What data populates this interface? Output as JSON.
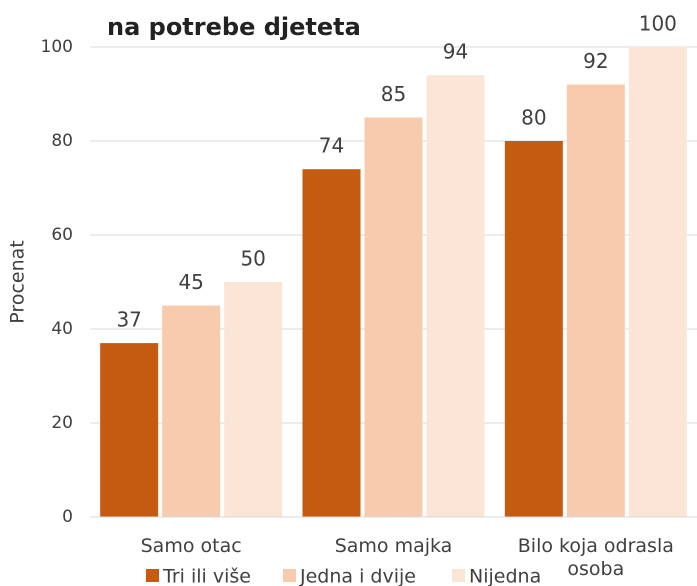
{
  "chart_data": {
    "type": "bar",
    "title": "na potrebe djeteta",
    "categories": [
      "Samo otac",
      "Samo majka",
      "Bilo koja odrasla osoba"
    ],
    "series": [
      {
        "name": "Tri ili više",
        "color": "#c55a11",
        "values": [
          37,
          74,
          80
        ]
      },
      {
        "name": "Jedna i dvije",
        "color": "#f8cbad",
        "values": [
          45,
          85,
          92
        ]
      },
      {
        "name": "Nijedna",
        "color": "#fbe5d6",
        "values": [
          50,
          94,
          100
        ]
      }
    ],
    "ylabel": "Procenat",
    "ylim": [
      0,
      100
    ],
    "yticks": [
      0,
      20,
      40,
      60,
      80,
      100
    ],
    "grid": true,
    "legend": "bottom"
  }
}
